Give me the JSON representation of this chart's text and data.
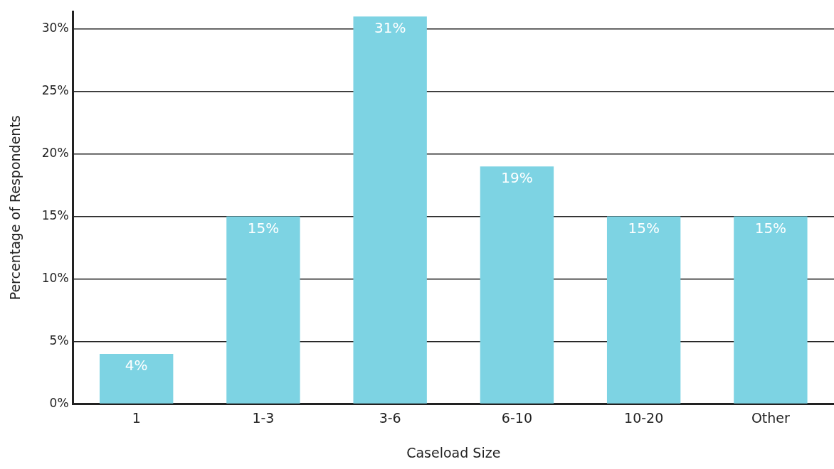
{
  "chart_data": {
    "type": "bar",
    "xlabel": "Caseload Size",
    "ylabel": "Percentage of Respondents",
    "categories": [
      "1",
      "1-3",
      "3-6",
      "6-10",
      "10-20",
      "Other"
    ],
    "values": [
      4,
      15,
      31,
      19,
      15,
      15
    ],
    "color": "#7dd3e3",
    "ylim": [
      0,
      31.4
    ],
    "yticks": [
      {
        "value": 0,
        "label": "0%"
      },
      {
        "value": 5,
        "label": "5%"
      },
      {
        "value": 10,
        "label": "10%"
      },
      {
        "value": 15,
        "label": "15%"
      },
      {
        "value": 20,
        "label": "20%"
      },
      {
        "value": 25,
        "label": "25%"
      },
      {
        "value": 30,
        "label": "30%"
      }
    ],
    "grid": "y",
    "legend": false,
    "value_labels": [
      "4%",
      "15%",
      "31%",
      "19%",
      "15%",
      "15%"
    ]
  }
}
